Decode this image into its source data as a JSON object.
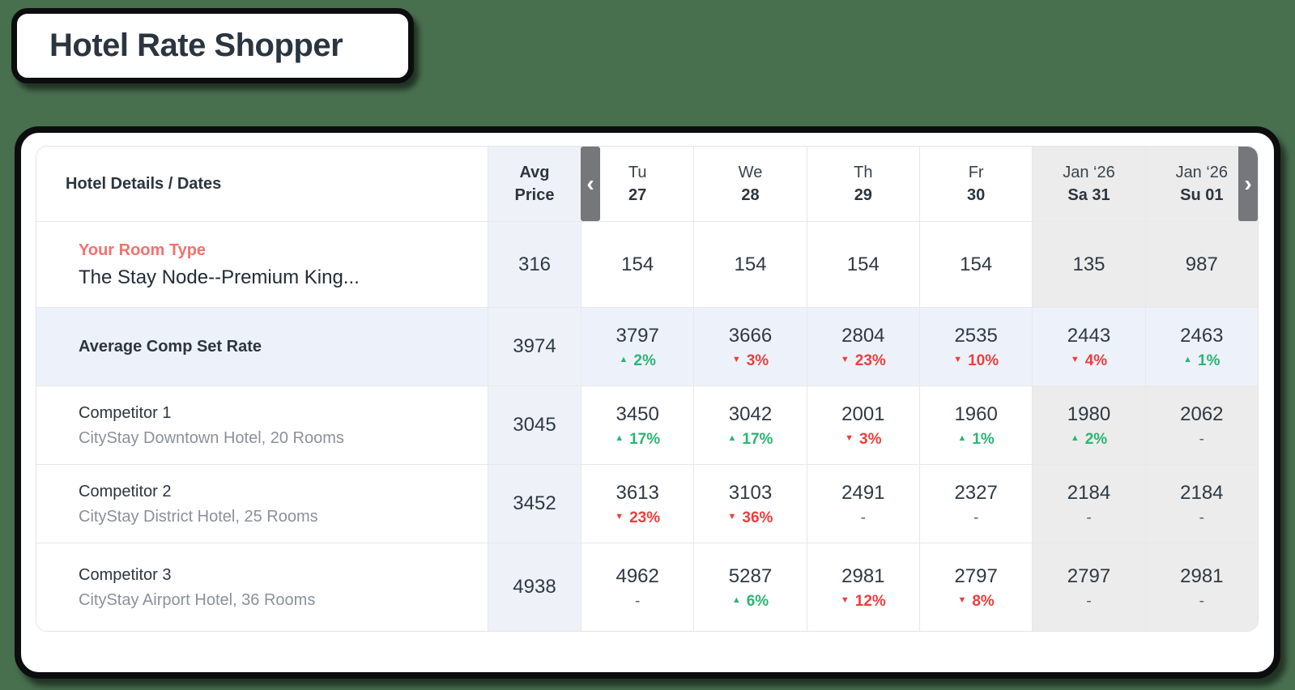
{
  "page": {
    "title": "Hotel Rate Shopper"
  },
  "colors": {
    "positive_green": "#2ab573",
    "negative_red": "#ed3e3c",
    "your_room_red": "#f3716e",
    "avg_column_blue": "#eef2f8",
    "comp_set_row_blue": "#edf2fa",
    "weekend_gray": "#ececec",
    "nav_gray": "#76777a",
    "background_green": "#48704f",
    "ink": "#2b3540"
  },
  "table": {
    "corner_header": "Hotel Details / Dates",
    "avg_header": {
      "line1": "Avg",
      "line2": "Price"
    },
    "nav": {
      "prev": "‹",
      "next": "›"
    },
    "columns": [
      {
        "line1": "Tu",
        "line2": "27",
        "weekend": false
      },
      {
        "line1": "We",
        "line2": "28",
        "weekend": false
      },
      {
        "line1": "Th",
        "line2": "29",
        "weekend": false
      },
      {
        "line1": "Fr",
        "line2": "30",
        "weekend": false
      },
      {
        "line1": "Jan ‘26",
        "line2": "Sa 31",
        "weekend": true
      },
      {
        "line1": "Jan ‘26",
        "line2": "Su 01",
        "weekend": true
      }
    ],
    "rows": [
      {
        "type": "your-room",
        "label": "Your Room Type",
        "sublabel": "The Stay Node--Premium King...",
        "avg": "316",
        "cells": [
          {
            "value": "154"
          },
          {
            "value": "154"
          },
          {
            "value": "154"
          },
          {
            "value": "154"
          },
          {
            "value": "135"
          },
          {
            "value": "987"
          }
        ]
      },
      {
        "type": "comp-set",
        "label": "Average Comp Set Rate",
        "avg": "3974",
        "cells": [
          {
            "value": "3797",
            "arrow": "▲",
            "change": "2%",
            "dir": "up"
          },
          {
            "value": "3666",
            "arrow": "▼",
            "change": "3%",
            "dir": "down"
          },
          {
            "value": "2804",
            "arrow": "▼",
            "change": "23%",
            "dir": "down"
          },
          {
            "value": "2535",
            "arrow": "▼",
            "change": "10%",
            "dir": "down"
          },
          {
            "value": "2443",
            "arrow": "▼",
            "change": "4%",
            "dir": "down"
          },
          {
            "value": "2463",
            "arrow": "▲",
            "change": "1%",
            "dir": "up"
          }
        ]
      },
      {
        "type": "competitor",
        "label": "Competitor 1",
        "sublabel": "CityStay Downtown Hotel, 20 Rooms",
        "avg": "3045",
        "cells": [
          {
            "value": "3450",
            "arrow": "▲",
            "change": "17%",
            "dir": "up"
          },
          {
            "value": "3042",
            "arrow": "▲",
            "change": "17%",
            "dir": "up"
          },
          {
            "value": "2001",
            "arrow": "▼",
            "change": "3%",
            "dir": "down"
          },
          {
            "value": "1960",
            "arrow": "▲",
            "change": "1%",
            "dir": "up"
          },
          {
            "value": "1980",
            "arrow": "▲",
            "change": "2%",
            "dir": "up"
          },
          {
            "value": "2062",
            "change": "-",
            "dir": "none"
          }
        ]
      },
      {
        "type": "competitor",
        "label": "Competitor 2",
        "sublabel": "CityStay District Hotel, 25 Rooms",
        "avg": "3452",
        "cells": [
          {
            "value": "3613",
            "arrow": "▼",
            "change": "23%",
            "dir": "down"
          },
          {
            "value": "3103",
            "arrow": "▼",
            "change": "36%",
            "dir": "down"
          },
          {
            "value": "2491",
            "change": "-",
            "dir": "none"
          },
          {
            "value": "2327",
            "change": "-",
            "dir": "none"
          },
          {
            "value": "2184",
            "change": "-",
            "dir": "none"
          },
          {
            "value": "2184",
            "change": "-",
            "dir": "none"
          }
        ]
      },
      {
        "type": "competitor",
        "label": "Competitor 3",
        "sublabel": "CityStay Airport Hotel, 36 Rooms",
        "avg": "4938",
        "cells": [
          {
            "value": "4962",
            "change": "-",
            "dir": "none"
          },
          {
            "value": "5287",
            "arrow": "▲",
            "change": "6%",
            "dir": "up"
          },
          {
            "value": "2981",
            "arrow": "▼",
            "change": "12%",
            "dir": "down"
          },
          {
            "value": "2797",
            "arrow": "▼",
            "change": "8%",
            "dir": "down"
          },
          {
            "value": "2797",
            "change": "-",
            "dir": "none"
          },
          {
            "value": "2981",
            "change": "-",
            "dir": "none"
          }
        ]
      }
    ]
  }
}
